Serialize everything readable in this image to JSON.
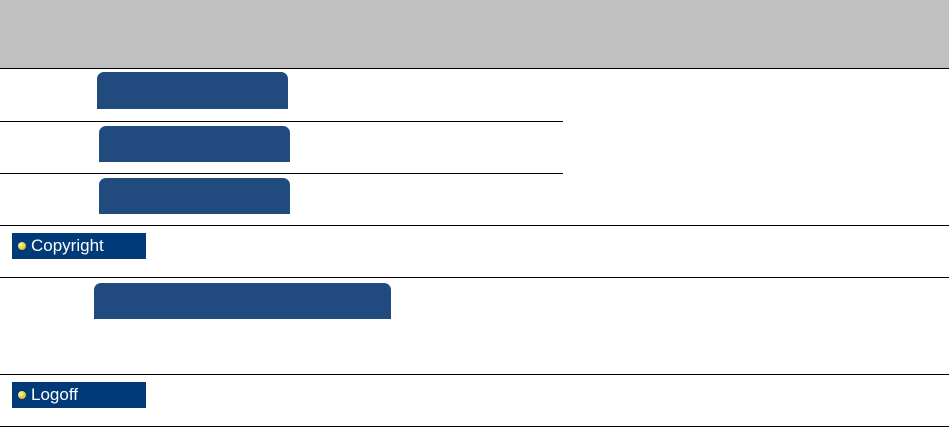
{
  "menu": {
    "items": [
      {
        "label": "Copyright"
      },
      {
        "label": "Logoff"
      }
    ]
  }
}
